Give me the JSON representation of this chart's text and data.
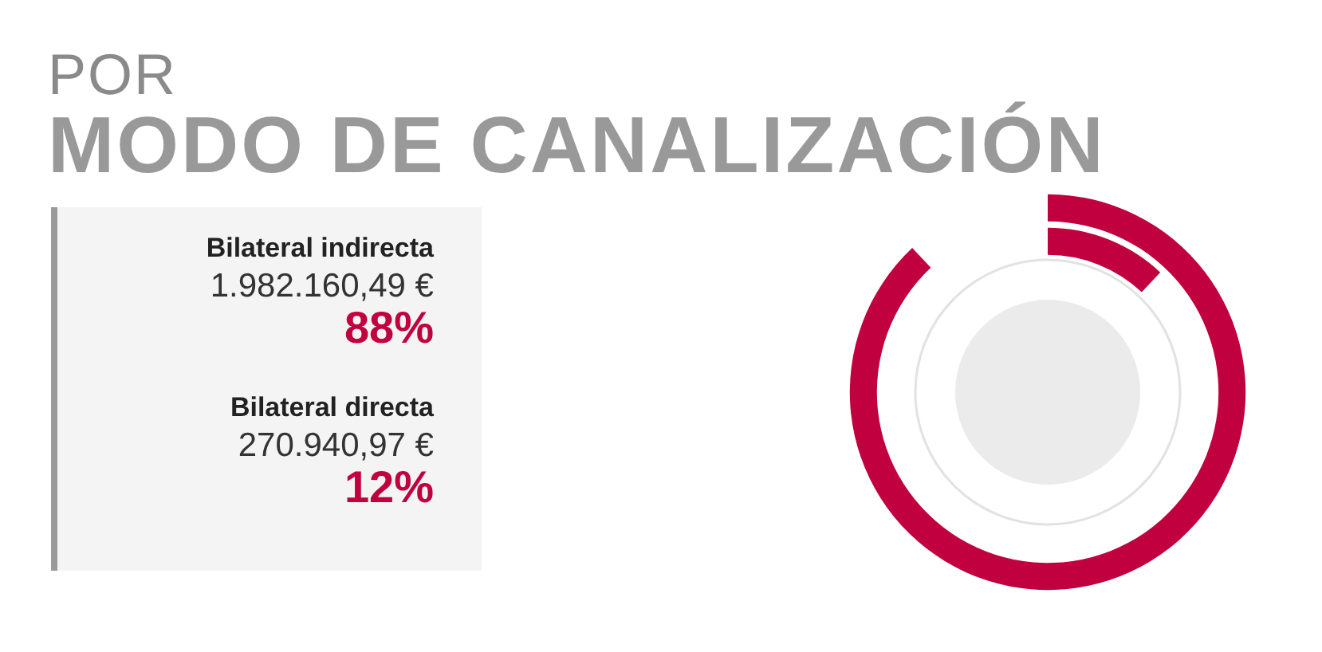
{
  "chart_data": {
    "type": "other",
    "title": "POR",
    "subtitle": "MODO DE CANALIZACIÓN",
    "categories": [
      "Bilateral indirecta",
      "Bilateral directa"
    ],
    "values": [
      88,
      12
    ],
    "value_labels": [
      "88%",
      "12%"
    ],
    "colors": [
      "#c1003f",
      "#c1003f"
    ],
    "annotations": [
      {
        "text": "1.982.160,49 €",
        "x": "Bilateral indirecta"
      },
      {
        "text": "270.940,97 €",
        "x": "Bilateral directa"
      }
    ],
    "legend": false
  }
}
